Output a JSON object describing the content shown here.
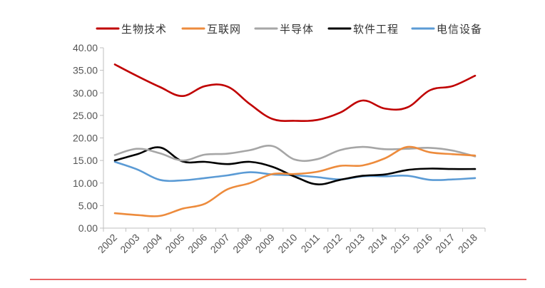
{
  "chart_data": {
    "type": "line",
    "title": "",
    "xlabel": "",
    "ylabel": "",
    "categories": [
      "2002",
      "2003",
      "2004",
      "2005",
      "2006",
      "2007",
      "2008",
      "2009",
      "2010",
      "2011",
      "2012",
      "2013",
      "2014",
      "2015",
      "2016",
      "2017",
      "2018"
    ],
    "ylim": [
      0,
      40
    ],
    "yticks": [
      "0.00",
      "5.00",
      "10.00",
      "15.00",
      "20.00",
      "25.00",
      "30.00",
      "35.00",
      "40.00"
    ],
    "yticks_values": [
      0,
      5,
      10,
      15,
      20,
      25,
      30,
      35,
      40
    ],
    "legend_position": "top",
    "series": [
      {
        "name": "生物技术",
        "color": "#c00000",
        "values": [
          36.3,
          33.7,
          31.3,
          29.3,
          31.5,
          31.4,
          27.5,
          24.2,
          23.8,
          24.0,
          25.6,
          28.3,
          26.5,
          26.8,
          30.6,
          31.5,
          33.8
        ]
      },
      {
        "name": "互联网",
        "color": "#ed8b3c",
        "values": [
          3.3,
          2.9,
          2.7,
          4.3,
          5.4,
          8.6,
          10.0,
          12.0,
          12.0,
          12.5,
          13.8,
          13.9,
          15.5,
          18.0,
          16.8,
          16.4,
          16.1
        ]
      },
      {
        "name": "半导体",
        "color": "#a6a6a6",
        "values": [
          16.2,
          17.6,
          16.6,
          15.0,
          16.3,
          16.5,
          17.3,
          18.2,
          15.2,
          15.3,
          17.3,
          18.0,
          17.5,
          17.6,
          17.8,
          17.2,
          15.9
        ]
      },
      {
        "name": "软件工程",
        "color": "#000000",
        "values": [
          15.0,
          16.4,
          17.9,
          14.8,
          14.7,
          14.2,
          14.7,
          13.6,
          11.4,
          9.7,
          10.7,
          11.6,
          11.9,
          12.9,
          13.2,
          13.1,
          13.1
        ]
      },
      {
        "name": "电信设备",
        "color": "#5b9bd5",
        "values": [
          14.7,
          13.0,
          10.7,
          10.6,
          11.1,
          11.7,
          12.4,
          11.9,
          11.7,
          11.3,
          10.8,
          11.5,
          11.5,
          11.6,
          10.7,
          10.8,
          11.1
        ]
      }
    ]
  }
}
